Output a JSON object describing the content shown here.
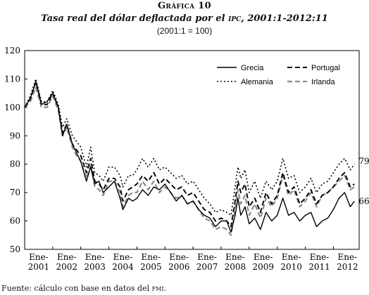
{
  "figure": {
    "title": "Gráfica 10",
    "subtitle": "Tasa real del dólar deflactada por el ipc, 2001:1-2012:11",
    "note": "(2001:1 = 100)",
    "source": "Fuente: cálculo con base en datos del fmi."
  },
  "chart_data": {
    "type": "line",
    "title": "Tasa real del dólar deflactada por el ipc, 2001:1-2012:11",
    "ylim": [
      50,
      120
    ],
    "yticks": [
      50,
      60,
      70,
      80,
      90,
      100,
      110,
      120
    ],
    "xlim": [
      2001.0,
      2012.917
    ],
    "xtick_positions": [
      2001,
      2002,
      2003,
      2004,
      2005,
      2006,
      2007,
      2008,
      2009,
      2010,
      2011,
      2012
    ],
    "xtick_labels": [
      [
        "Ene-",
        "2001"
      ],
      [
        "Ene-",
        "2002"
      ],
      [
        "Ene-",
        "2003"
      ],
      [
        "Ene-",
        "2004"
      ],
      [
        "Ene-",
        "2005"
      ],
      [
        "Ene-",
        "2006"
      ],
      [
        "Ene-",
        "2007"
      ],
      [
        "Ene-",
        "2008"
      ],
      [
        "Ene-",
        "2009"
      ],
      [
        "Ene-",
        "2010"
      ],
      [
        "Ene-",
        "2011"
      ],
      [
        "Ene-",
        "2012"
      ]
    ],
    "grid": false,
    "legend_placement": "top-right",
    "series": [
      {
        "name": "Grecia",
        "color": "#000000",
        "style": "solid",
        "points": [
          [
            2001.0,
            100
          ],
          [
            2001.2,
            103
          ],
          [
            2001.4,
            109
          ],
          [
            2001.6,
            101
          ],
          [
            2001.8,
            102
          ],
          [
            2002.0,
            105
          ],
          [
            2002.2,
            100
          ],
          [
            2002.35,
            90
          ],
          [
            2002.5,
            94
          ],
          [
            2002.7,
            87
          ],
          [
            2002.85,
            84
          ],
          [
            2003.0,
            81
          ],
          [
            2003.2,
            74
          ],
          [
            2003.35,
            79
          ],
          [
            2003.5,
            73
          ],
          [
            2003.65,
            74
          ],
          [
            2003.8,
            70
          ],
          [
            2004.0,
            72
          ],
          [
            2004.2,
            74
          ],
          [
            2004.4,
            68
          ],
          [
            2004.5,
            64
          ],
          [
            2004.7,
            68
          ],
          [
            2004.85,
            67
          ],
          [
            2005.0,
            68
          ],
          [
            2005.2,
            71
          ],
          [
            2005.4,
            69
          ],
          [
            2005.6,
            72
          ],
          [
            2005.8,
            71
          ],
          [
            2006.0,
            73
          ],
          [
            2006.2,
            70
          ],
          [
            2006.4,
            67
          ],
          [
            2006.6,
            69
          ],
          [
            2006.8,
            66
          ],
          [
            2007.0,
            67
          ],
          [
            2007.2,
            64
          ],
          [
            2007.4,
            62
          ],
          [
            2007.6,
            61
          ],
          [
            2007.8,
            58
          ],
          [
            2008.0,
            60
          ],
          [
            2008.2,
            60
          ],
          [
            2008.35,
            56
          ],
          [
            2008.5,
            62
          ],
          [
            2008.6,
            68
          ],
          [
            2008.7,
            62
          ],
          [
            2008.85,
            65
          ],
          [
            2009.0,
            59
          ],
          [
            2009.2,
            61
          ],
          [
            2009.4,
            57
          ],
          [
            2009.6,
            63
          ],
          [
            2009.8,
            60
          ],
          [
            2010.0,
            62
          ],
          [
            2010.2,
            68
          ],
          [
            2010.4,
            62
          ],
          [
            2010.6,
            63
          ],
          [
            2010.8,
            60
          ],
          [
            2011.0,
            62
          ],
          [
            2011.2,
            63
          ],
          [
            2011.4,
            58
          ],
          [
            2011.6,
            60
          ],
          [
            2011.8,
            61
          ],
          [
            2012.0,
            64
          ],
          [
            2012.2,
            68
          ],
          [
            2012.4,
            70
          ],
          [
            2012.6,
            65
          ],
          [
            2012.75,
            67
          ]
        ],
        "end_label": "66"
      },
      {
        "name": "Alemania",
        "color": "#000000",
        "style": "dotted",
        "points": [
          [
            2001.0,
            100
          ],
          [
            2001.2,
            104
          ],
          [
            2001.4,
            110
          ],
          [
            2001.6,
            102
          ],
          [
            2001.8,
            102
          ],
          [
            2002.0,
            106
          ],
          [
            2002.2,
            101
          ],
          [
            2002.35,
            93
          ],
          [
            2002.5,
            96
          ],
          [
            2002.7,
            90
          ],
          [
            2002.85,
            88
          ],
          [
            2003.0,
            86
          ],
          [
            2003.2,
            79
          ],
          [
            2003.35,
            86
          ],
          [
            2003.5,
            77
          ],
          [
            2003.65,
            76
          ],
          [
            2003.8,
            74
          ],
          [
            2004.0,
            79
          ],
          [
            2004.2,
            79
          ],
          [
            2004.4,
            76
          ],
          [
            2004.5,
            72
          ],
          [
            2004.7,
            76
          ],
          [
            2004.85,
            76
          ],
          [
            2005.0,
            78
          ],
          [
            2005.2,
            82
          ],
          [
            2005.4,
            79
          ],
          [
            2005.6,
            82
          ],
          [
            2005.8,
            78
          ],
          [
            2006.0,
            79
          ],
          [
            2006.2,
            77
          ],
          [
            2006.4,
            75
          ],
          [
            2006.6,
            76
          ],
          [
            2006.8,
            73
          ],
          [
            2007.0,
            74
          ],
          [
            2007.2,
            71
          ],
          [
            2007.4,
            68
          ],
          [
            2007.6,
            66
          ],
          [
            2007.8,
            63
          ],
          [
            2008.0,
            64
          ],
          [
            2008.2,
            63
          ],
          [
            2008.35,
            62
          ],
          [
            2008.5,
            72
          ],
          [
            2008.6,
            79
          ],
          [
            2008.7,
            75
          ],
          [
            2008.85,
            78
          ],
          [
            2009.0,
            70
          ],
          [
            2009.2,
            74
          ],
          [
            2009.4,
            68
          ],
          [
            2009.6,
            74
          ],
          [
            2009.8,
            71
          ],
          [
            2010.0,
            74
          ],
          [
            2010.2,
            82
          ],
          [
            2010.4,
            75
          ],
          [
            2010.6,
            76
          ],
          [
            2010.8,
            70
          ],
          [
            2011.0,
            72
          ],
          [
            2011.2,
            75
          ],
          [
            2011.4,
            70
          ],
          [
            2011.6,
            73
          ],
          [
            2011.8,
            74
          ],
          [
            2012.0,
            77
          ],
          [
            2012.2,
            80
          ],
          [
            2012.4,
            82
          ],
          [
            2012.6,
            78
          ],
          [
            2012.75,
            80
          ]
        ],
        "end_label": "79"
      },
      {
        "name": "Portugal",
        "color": "#000000",
        "style": "dashed",
        "points": [
          [
            2001.0,
            100
          ],
          [
            2001.2,
            103
          ],
          [
            2001.4,
            109
          ],
          [
            2001.6,
            101
          ],
          [
            2001.8,
            101
          ],
          [
            2002.0,
            105
          ],
          [
            2002.2,
            100
          ],
          [
            2002.35,
            91
          ],
          [
            2002.5,
            94
          ],
          [
            2002.7,
            87
          ],
          [
            2002.85,
            85
          ],
          [
            2003.0,
            83
          ],
          [
            2003.2,
            77
          ],
          [
            2003.35,
            82
          ],
          [
            2003.5,
            74
          ],
          [
            2003.65,
            73
          ],
          [
            2003.8,
            71
          ],
          [
            2004.0,
            75
          ],
          [
            2004.2,
            75
          ],
          [
            2004.4,
            72
          ],
          [
            2004.5,
            67
          ],
          [
            2004.7,
            71
          ],
          [
            2004.85,
            72
          ],
          [
            2005.0,
            73
          ],
          [
            2005.2,
            76
          ],
          [
            2005.4,
            74
          ],
          [
            2005.6,
            77
          ],
          [
            2005.8,
            73
          ],
          [
            2006.0,
            75
          ],
          [
            2006.2,
            73
          ],
          [
            2006.4,
            71
          ],
          [
            2006.6,
            72
          ],
          [
            2006.8,
            69
          ],
          [
            2007.0,
            70
          ],
          [
            2007.2,
            67
          ],
          [
            2007.4,
            64
          ],
          [
            2007.6,
            63
          ],
          [
            2007.8,
            60
          ],
          [
            2008.0,
            61
          ],
          [
            2008.2,
            60
          ],
          [
            2008.35,
            58
          ],
          [
            2008.5,
            67
          ],
          [
            2008.6,
            74
          ],
          [
            2008.7,
            70
          ],
          [
            2008.85,
            73
          ],
          [
            2009.0,
            65
          ],
          [
            2009.2,
            68
          ],
          [
            2009.4,
            63
          ],
          [
            2009.6,
            70
          ],
          [
            2009.8,
            66
          ],
          [
            2010.0,
            69
          ],
          [
            2010.2,
            77
          ],
          [
            2010.4,
            70
          ],
          [
            2010.6,
            72
          ],
          [
            2010.8,
            66
          ],
          [
            2011.0,
            68
          ],
          [
            2011.2,
            71
          ],
          [
            2011.4,
            66
          ],
          [
            2011.6,
            69
          ],
          [
            2011.8,
            70
          ],
          [
            2012.0,
            72
          ],
          [
            2012.2,
            75
          ],
          [
            2012.4,
            77
          ],
          [
            2012.6,
            72
          ],
          [
            2012.75,
            73
          ]
        ]
      },
      {
        "name": "Irlanda",
        "color": "#8c8c8c",
        "style": "dashed",
        "points": [
          [
            2001.0,
            100
          ],
          [
            2001.2,
            102
          ],
          [
            2001.4,
            107
          ],
          [
            2001.6,
            100
          ],
          [
            2001.8,
            100
          ],
          [
            2002.0,
            104
          ],
          [
            2002.2,
            99
          ],
          [
            2002.35,
            90
          ],
          [
            2002.5,
            93
          ],
          [
            2002.7,
            86
          ],
          [
            2002.85,
            83
          ],
          [
            2003.0,
            81
          ],
          [
            2003.2,
            75
          ],
          [
            2003.35,
            80
          ],
          [
            2003.5,
            72
          ],
          [
            2003.65,
            71
          ],
          [
            2003.8,
            69
          ],
          [
            2004.0,
            74
          ],
          [
            2004.2,
            74
          ],
          [
            2004.4,
            70
          ],
          [
            2004.5,
            65
          ],
          [
            2004.7,
            69
          ],
          [
            2004.85,
            70
          ],
          [
            2005.0,
            70
          ],
          [
            2005.2,
            74
          ],
          [
            2005.4,
            71
          ],
          [
            2005.6,
            74
          ],
          [
            2005.8,
            70
          ],
          [
            2006.0,
            72
          ],
          [
            2006.2,
            70
          ],
          [
            2006.4,
            68
          ],
          [
            2006.6,
            69
          ],
          [
            2006.8,
            66
          ],
          [
            2007.0,
            67
          ],
          [
            2007.2,
            64
          ],
          [
            2007.4,
            61
          ],
          [
            2007.6,
            60
          ],
          [
            2007.8,
            57
          ],
          [
            2008.0,
            58
          ],
          [
            2008.2,
            57
          ],
          [
            2008.35,
            55
          ],
          [
            2008.5,
            64
          ],
          [
            2008.6,
            71
          ],
          [
            2008.7,
            66
          ],
          [
            2008.85,
            69
          ],
          [
            2009.0,
            62
          ],
          [
            2009.2,
            66
          ],
          [
            2009.4,
            61
          ],
          [
            2009.6,
            68
          ],
          [
            2009.8,
            65
          ],
          [
            2010.0,
            68
          ],
          [
            2010.2,
            76
          ],
          [
            2010.4,
            69
          ],
          [
            2010.6,
            71
          ],
          [
            2010.8,
            65
          ],
          [
            2011.0,
            67
          ],
          [
            2011.2,
            70
          ],
          [
            2011.4,
            65
          ],
          [
            2011.6,
            69
          ],
          [
            2011.8,
            70
          ],
          [
            2012.0,
            72
          ],
          [
            2012.2,
            74
          ],
          [
            2012.4,
            76
          ],
          [
            2012.6,
            71
          ],
          [
            2012.75,
            72
          ]
        ]
      }
    ]
  }
}
